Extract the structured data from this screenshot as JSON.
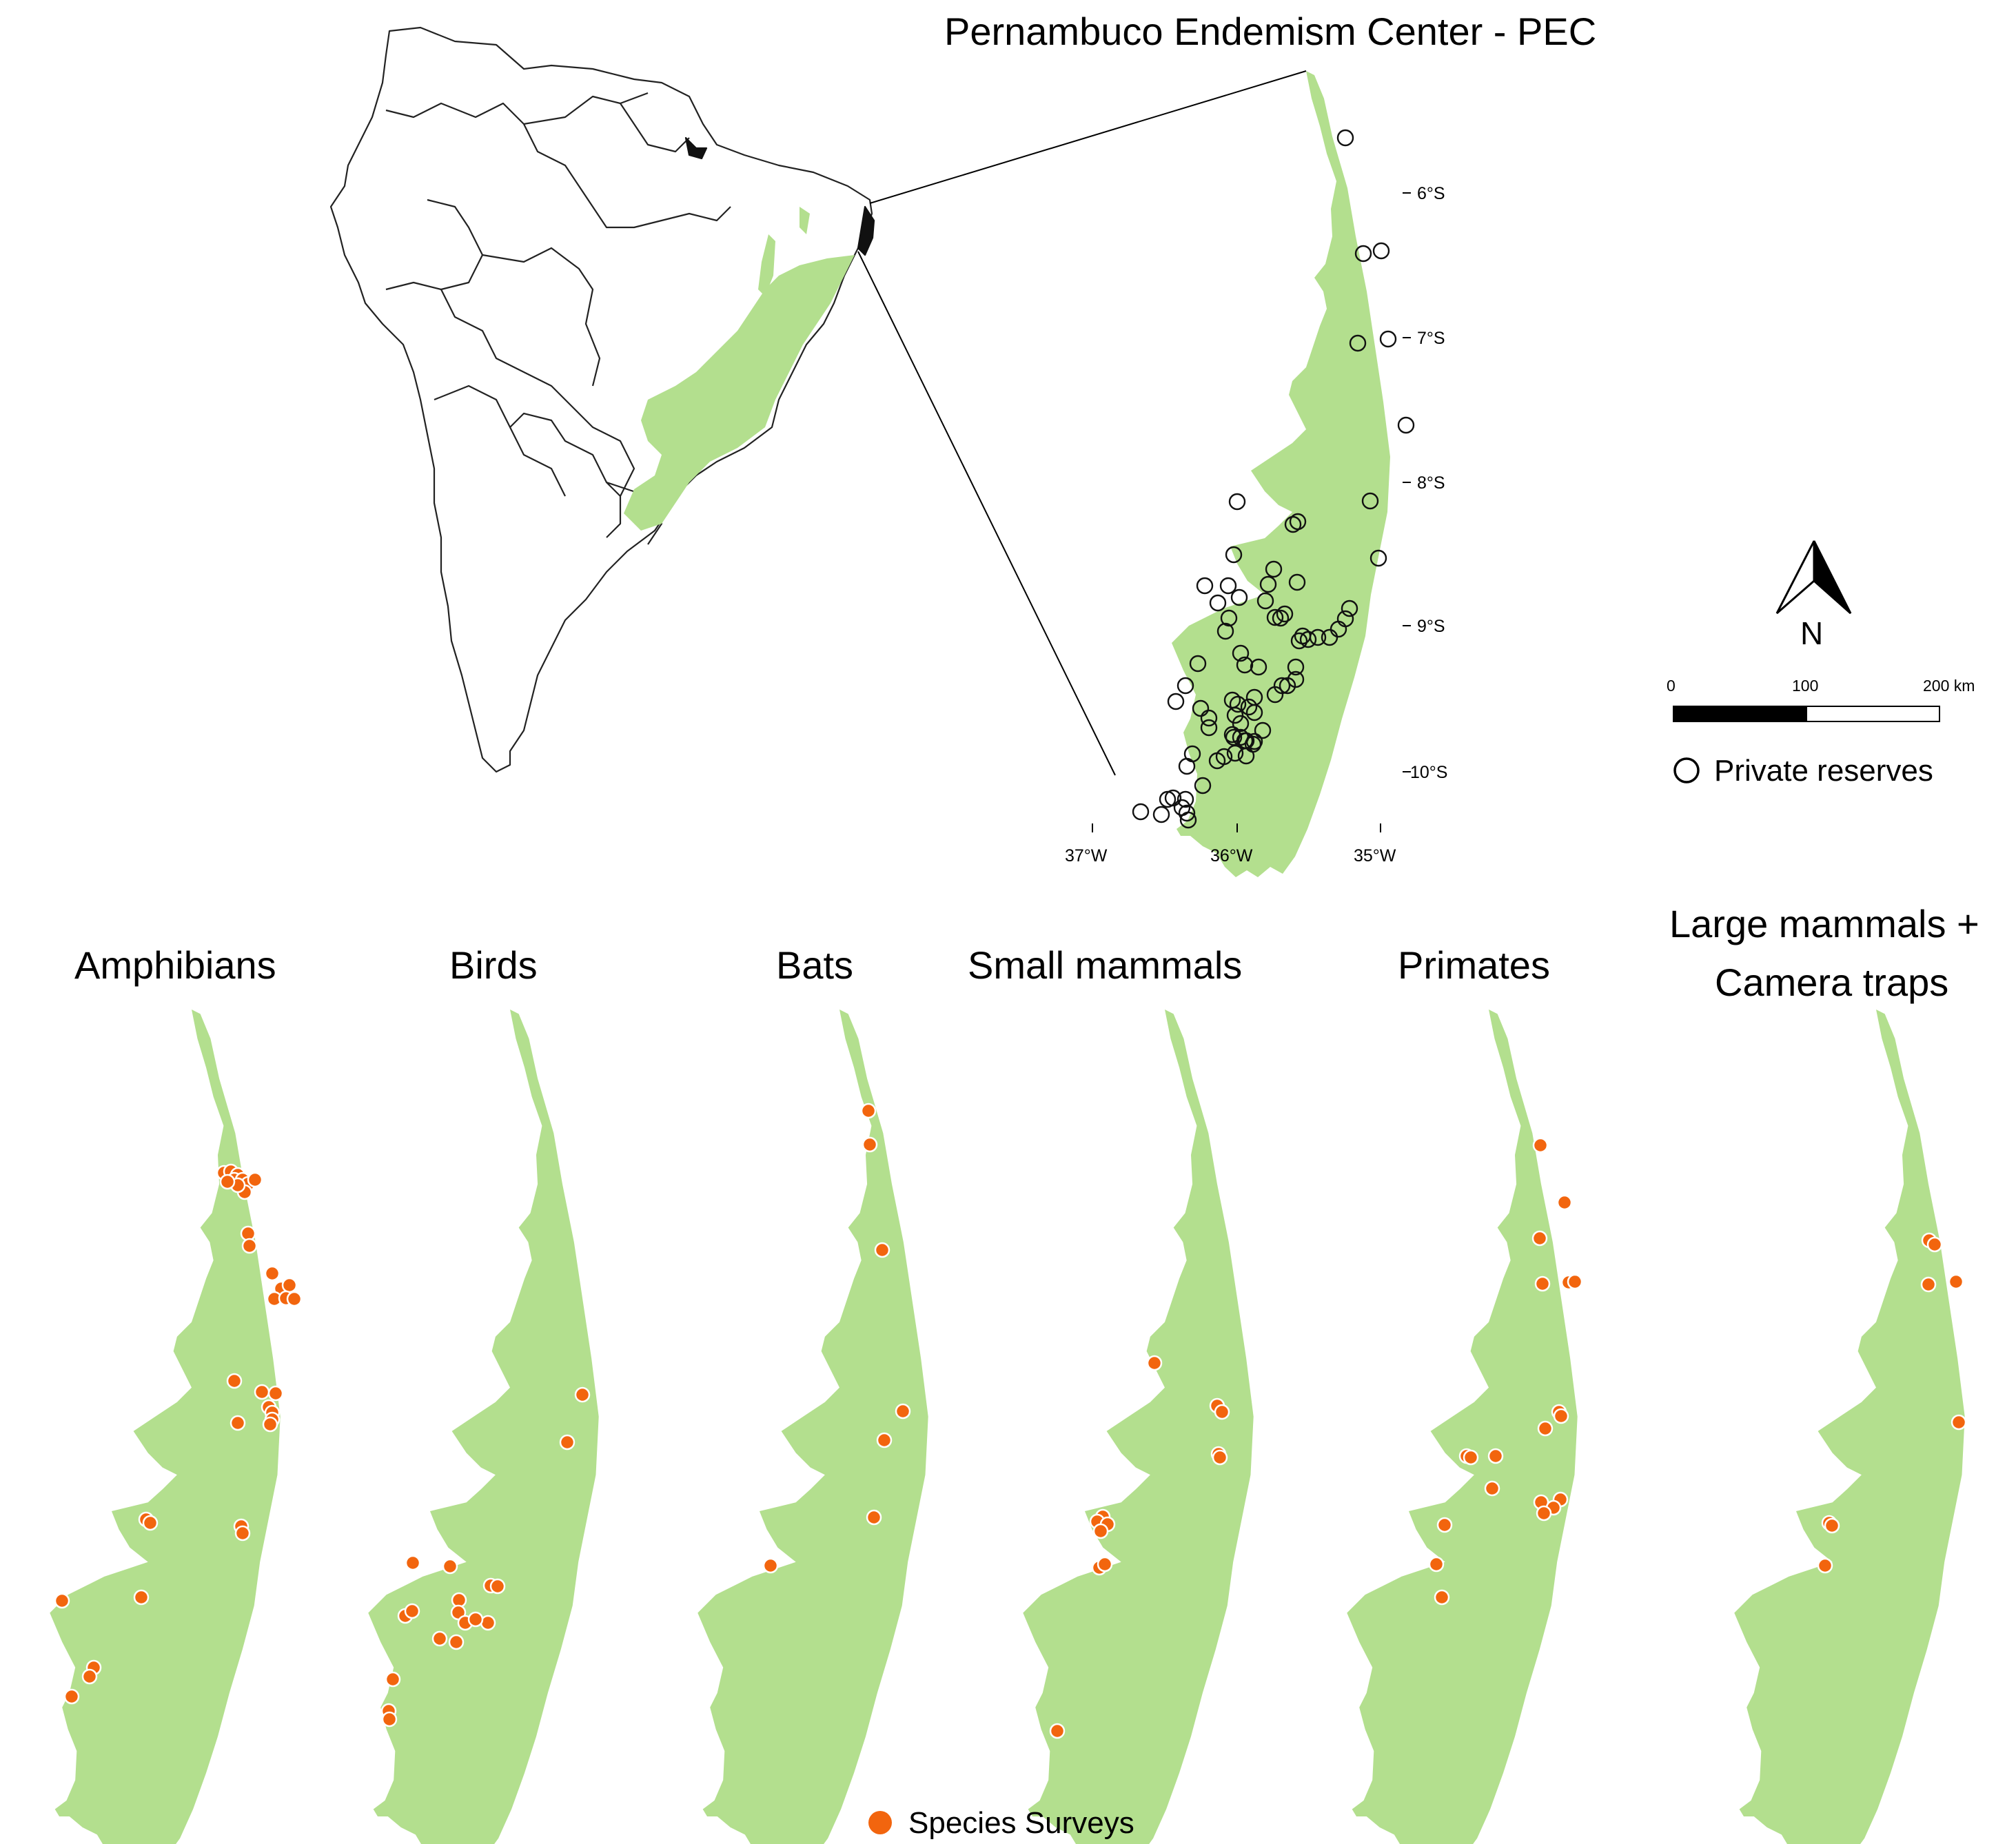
{
  "map": {
    "title": "Pernambuco Endemism Center - PEC",
    "lat_ticks": [
      "6°S",
      "7°S",
      "8°S",
      "9°S",
      "10°S"
    ],
    "lon_ticks": [
      "37°W",
      "36°W",
      "35°W"
    ],
    "north_label": "N",
    "scale": {
      "labels": [
        "0",
        "100",
        "200 km"
      ]
    },
    "legend_reserves": "Private reserves",
    "legend_surveys": "Species Surveys",
    "colors": {
      "forest": "#b3df8e",
      "survey": "#f2650e",
      "outline": "#222222"
    }
  },
  "panels": [
    {
      "title": "Amphibians"
    },
    {
      "title": "Birds"
    },
    {
      "title": "Bats"
    },
    {
      "title": "Small mammals"
    },
    {
      "title": "Primates"
    },
    {
      "title_line1": "Large mammals +",
      "title_line2": "Camera traps"
    }
  ]
}
